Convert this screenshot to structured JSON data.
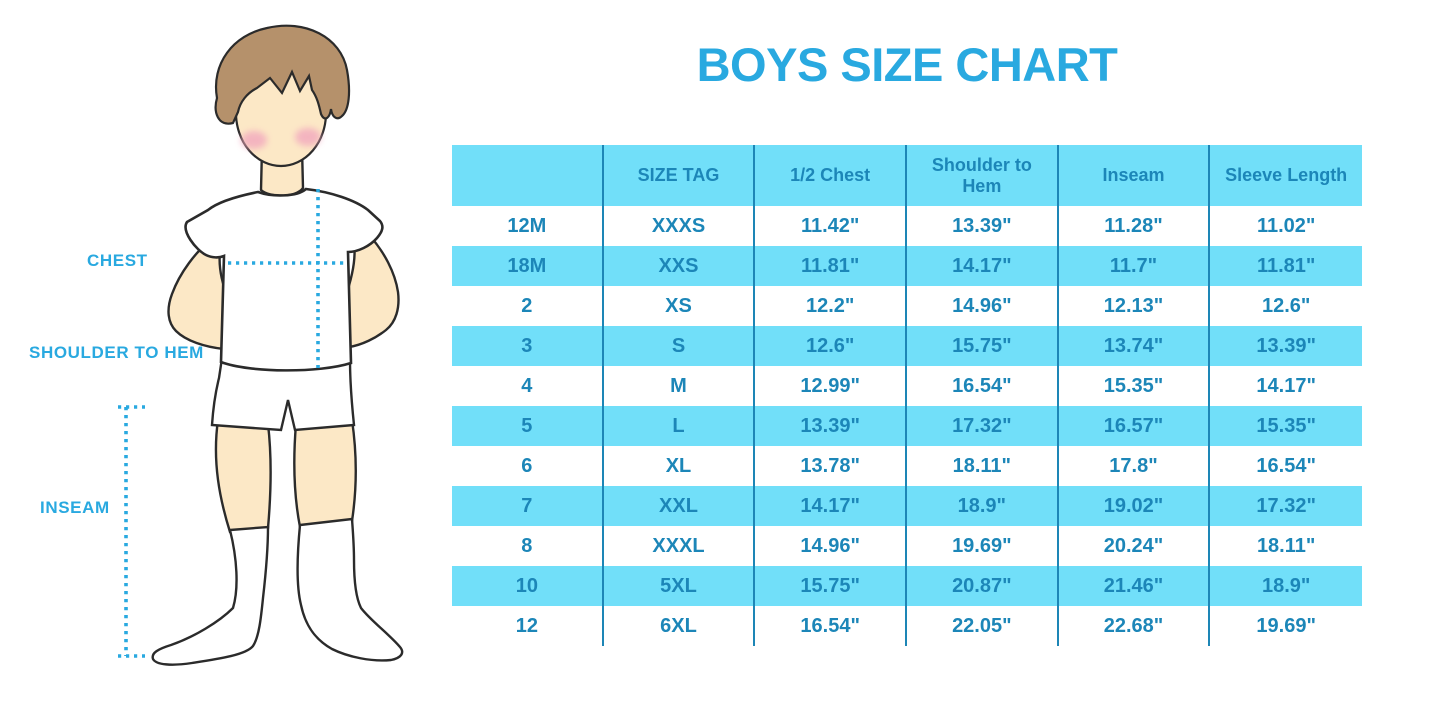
{
  "title": "BOYS SIZE CHART",
  "figure": {
    "description": "cartoon boy wearing white t-shirt, shorts and knee socks with measurement guides",
    "labels": {
      "chest": "CHEST",
      "shoulder_to_hem": "SHOULDER TO HEM",
      "inseam": "INSEAM"
    }
  },
  "chart_data": {
    "type": "table",
    "title": "BOYS SIZE CHART",
    "columns": [
      "",
      "SIZE TAG",
      "1/2 Chest",
      "Shoulder to Hem",
      "Inseam",
      "Sleeve Length"
    ],
    "rows": [
      [
        "12M",
        "XXXS",
        "11.42\"",
        "13.39\"",
        "11.28\"",
        "11.02\""
      ],
      [
        "18M",
        "XXS",
        "11.81\"",
        "14.17\"",
        "11.7\"",
        "11.81\""
      ],
      [
        "2",
        "XS",
        "12.2\"",
        "14.96\"",
        "12.13\"",
        "12.6\""
      ],
      [
        "3",
        "S",
        "12.6\"",
        "15.75\"",
        "13.74\"",
        "13.39\""
      ],
      [
        "4",
        "M",
        "12.99\"",
        "16.54\"",
        "15.35\"",
        "14.17\""
      ],
      [
        "5",
        "L",
        "13.39\"",
        "17.32\"",
        "16.57\"",
        "15.35\""
      ],
      [
        "6",
        "XL",
        "13.78\"",
        "18.11\"",
        "17.8\"",
        "16.54\""
      ],
      [
        "7",
        "XXL",
        "14.17\"",
        "18.9\"",
        "19.02\"",
        "17.32\""
      ],
      [
        "8",
        "XXXL",
        "14.96\"",
        "19.69\"",
        "20.24\"",
        "18.11\""
      ],
      [
        "10",
        "5XL",
        "15.75\"",
        "20.87\"",
        "21.46\"",
        "18.9\""
      ],
      [
        "12",
        "6XL",
        "16.54\"",
        "22.05\"",
        "22.68\"",
        "19.69\""
      ]
    ],
    "layout": {
      "stripe_pattern": "header and every second data row light blue",
      "grid": "vertical column dividers only"
    }
  },
  "colors": {
    "accent_blue": "#29A9E0",
    "row_stripe": "#71DFF9",
    "table_text": "#1C86B8",
    "column_divider": "#1D86B6",
    "skin": "#FCE8C6",
    "hair": "#B5916B",
    "cheek": "#F2A8BE",
    "outline": "#2B2B2B"
  }
}
